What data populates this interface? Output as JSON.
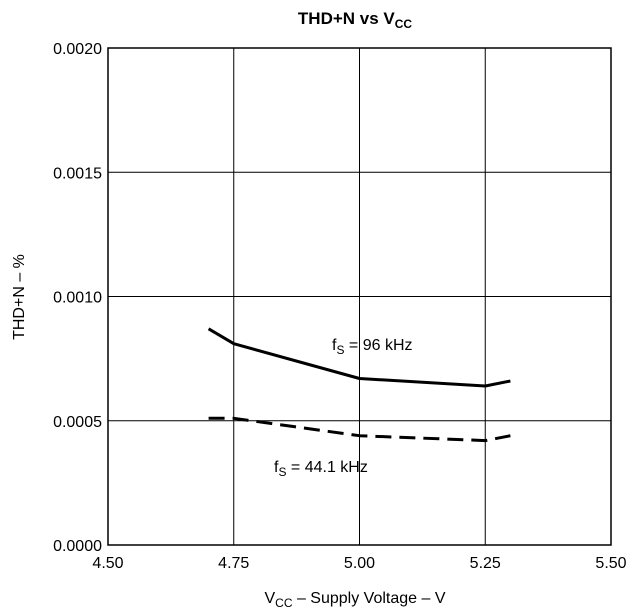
{
  "chart_data": {
    "type": "line",
    "title": {
      "main": "THD+N vs V",
      "sub": "CC"
    },
    "xlabel": {
      "pre": "V",
      "sub": "CC",
      "post": " – Supply Voltage – V"
    },
    "ylabel": "THD+N – %",
    "xlim": [
      4.5,
      5.5
    ],
    "ylim": [
      0.0,
      0.002
    ],
    "grid": true,
    "x_ticks": [
      "4.50",
      "4.75",
      "5.00",
      "5.25",
      "5.50"
    ],
    "y_ticks": [
      "0.0000",
      "0.0005",
      "0.0010",
      "0.0015",
      "0.0020"
    ],
    "series": [
      {
        "style": "solid",
        "label": {
          "pre": "f",
          "sub": "S",
          "post": " = 96 kHz"
        },
        "x": [
          4.7,
          4.75,
          5.0,
          5.25,
          5.3
        ],
        "y": [
          0.00087,
          0.00081,
          0.00067,
          0.00064,
          0.00066
        ]
      },
      {
        "style": "dashed",
        "label": {
          "pre": "f",
          "sub": "S",
          "post": " = 44.1 kHz"
        },
        "x": [
          4.7,
          4.75,
          5.0,
          5.25,
          5.3
        ],
        "y": [
          0.00051,
          0.00051,
          0.00044,
          0.00042,
          0.00044
        ]
      }
    ]
  }
}
